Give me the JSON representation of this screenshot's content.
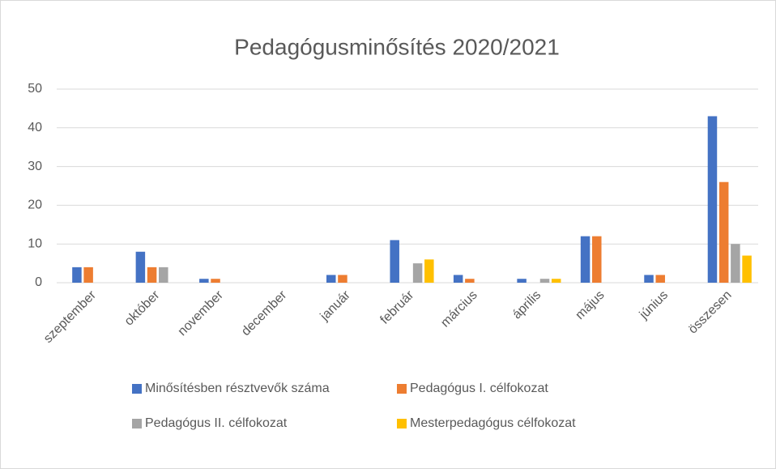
{
  "chart_data": {
    "type": "bar",
    "title": "Pedagógusminősítés 2020/2021",
    "categories": [
      "szeptember",
      "október",
      "november",
      "december",
      "január",
      "február",
      "március",
      "április",
      "május",
      "június",
      "összesen"
    ],
    "series": [
      {
        "name": "Minősítésben résztvevők száma",
        "color": "#4472c4",
        "values": [
          4,
          8,
          1,
          0,
          2,
          11,
          2,
          1,
          12,
          2,
          43
        ]
      },
      {
        "name": "Pedagógus I. célfokozat",
        "color": "#ed7d31",
        "values": [
          4,
          4,
          1,
          0,
          2,
          0,
          1,
          0,
          12,
          2,
          26
        ]
      },
      {
        "name": "Pedagógus II. célfokozat",
        "color": "#a5a5a5",
        "values": [
          0,
          4,
          0,
          0,
          0,
          5,
          0,
          1,
          0,
          0,
          10
        ]
      },
      {
        "name": "Mesterpedagógus célfokozat",
        "color": "#ffc000",
        "values": [
          0,
          0,
          0,
          0,
          0,
          6,
          0,
          1,
          0,
          0,
          7
        ]
      }
    ],
    "ylim": [
      0,
      50
    ],
    "yticks": [
      0,
      10,
      20,
      30,
      40,
      50
    ],
    "grid": true,
    "legend": "bottom"
  }
}
